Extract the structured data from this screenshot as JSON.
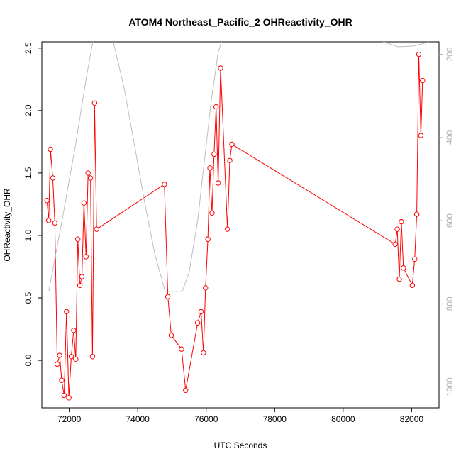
{
  "chart_data": {
    "type": "line",
    "title": "ATOM4 Northeast_Pacific_2 OHReactivity_OHR",
    "xlabel": "UTC Seconds",
    "ylabel": "OHReactivity_OHR",
    "xlim": [
      71200,
      82800
    ],
    "ylim": [
      -0.38,
      2.55
    ],
    "x_ticks": [
      72000,
      74000,
      76000,
      78000,
      80000,
      82000
    ],
    "y_ticks": [
      0.0,
      0.5,
      1.0,
      1.5,
      2.0,
      2.5
    ],
    "y_tick_labels": [
      "0.0",
      "0.5",
      "1.0",
      "1.5",
      "2.0",
      "2.5"
    ],
    "secondary_axis": {
      "ylim": [
        1050,
        170
      ],
      "ticks": [
        200,
        400,
        600,
        800,
        1000
      ],
      "color": "#b3b3b3"
    },
    "grid": false,
    "series": [
      {
        "color": "#ff0000",
        "x": [
          71350,
          71400,
          71450,
          71520,
          71580,
          71650,
          71720,
          71780,
          71850,
          71920,
          71990,
          72060,
          72130,
          72190,
          72250,
          72310,
          72370,
          72430,
          72490,
          72550,
          72620,
          72680,
          72740,
          72800,
          74780,
          74880,
          74980,
          75280,
          75400,
          75750,
          75850,
          75920,
          75980,
          76050,
          76110,
          76170,
          76230,
          76290,
          76350,
          76420,
          76620,
          76690,
          76750,
          81520,
          81580,
          81640,
          81700,
          81760,
          82020,
          82090,
          82150,
          82210,
          82270,
          82320
        ],
        "y": [
          1.28,
          1.12,
          1.69,
          1.46,
          1.1,
          -0.03,
          0.04,
          -0.16,
          -0.28,
          0.39,
          -0.3,
          0.03,
          0.24,
          0.01,
          0.97,
          0.6,
          0.67,
          1.26,
          0.83,
          1.5,
          1.46,
          0.03,
          2.06,
          1.05,
          1.41,
          0.51,
          0.2,
          0.09,
          -0.24,
          0.3,
          0.39,
          0.06,
          0.58,
          0.97,
          1.54,
          1.18,
          1.65,
          2.03,
          1.42,
          2.34,
          1.05,
          1.6,
          1.73,
          0.93,
          1.05,
          0.65,
          1.11,
          0.74,
          0.6,
          0.81,
          1.17,
          2.45,
          1.8,
          2.24
        ]
      },
      {
        "color": "#bebebe",
        "axis": "right",
        "x": [
          71400,
          71800,
          72200,
          72500,
          72700,
          72900,
          73050,
          73300,
          73600,
          73900,
          74200,
          74500,
          74800,
          75000,
          75300,
          75500,
          75750,
          75950,
          76150,
          76350,
          76550,
          76700,
          76850,
          81200,
          81600,
          82050,
          82300,
          82500
        ],
        "y": [
          770,
          595,
          410,
          255,
          165,
          90,
          120,
          175,
          280,
          415,
          555,
          680,
          770,
          770,
          770,
          725,
          600,
          455,
          310,
          195,
          145,
          125,
          120,
          170,
          182,
          180,
          175,
          170
        ]
      }
    ]
  }
}
